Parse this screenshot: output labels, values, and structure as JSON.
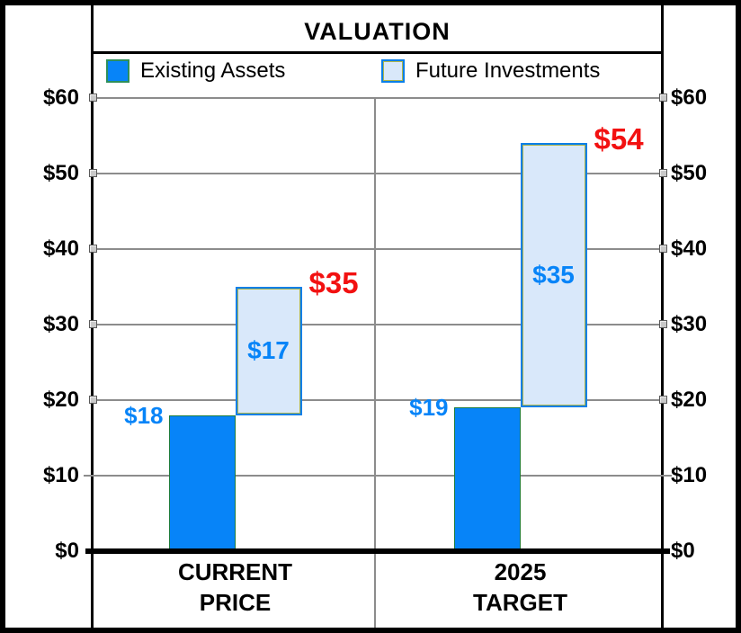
{
  "title": "VALUATION",
  "legend": {
    "items": [
      {
        "label": "Existing Assets",
        "swatch": "dark",
        "color": "#0784F8"
      },
      {
        "label": "Future Investments",
        "swatch": "light",
        "color": "#D9E8FA"
      }
    ],
    "position": "top"
  },
  "colors": {
    "existing_assets": "#0784F8",
    "future_investments": "#D9E8FA",
    "future_border": "#0A7FE8",
    "existing_border": "#1E7C3C",
    "total_label": "#F21111",
    "value_label": "#0784F8",
    "gridline": "#8C8C8C",
    "frame": "#000000"
  },
  "chart_data": {
    "type": "bar",
    "subtype": "stacked-offset",
    "title": "VALUATION",
    "categories": [
      "CURRENT\nPRICE",
      "2025\nTARGET"
    ],
    "series": [
      {
        "name": "Existing Assets",
        "values": [
          18,
          19
        ]
      },
      {
        "name": "Future Investments",
        "values": [
          17,
          35
        ]
      }
    ],
    "totals": [
      35,
      54
    ],
    "value_labels": {
      "existing": [
        "$18",
        "$19"
      ],
      "future": [
        "$17",
        "$35"
      ],
      "totals": [
        "$35",
        "$54"
      ]
    },
    "ylim": [
      0,
      60
    ],
    "yticks": [
      0,
      10,
      20,
      30,
      40,
      50,
      60
    ],
    "ytick_labels": [
      "$0",
      "$10",
      "$20",
      "$30",
      "$40",
      "$50",
      "$60"
    ],
    "ytick_sides": "both",
    "grid": true,
    "legend_position": "top"
  }
}
